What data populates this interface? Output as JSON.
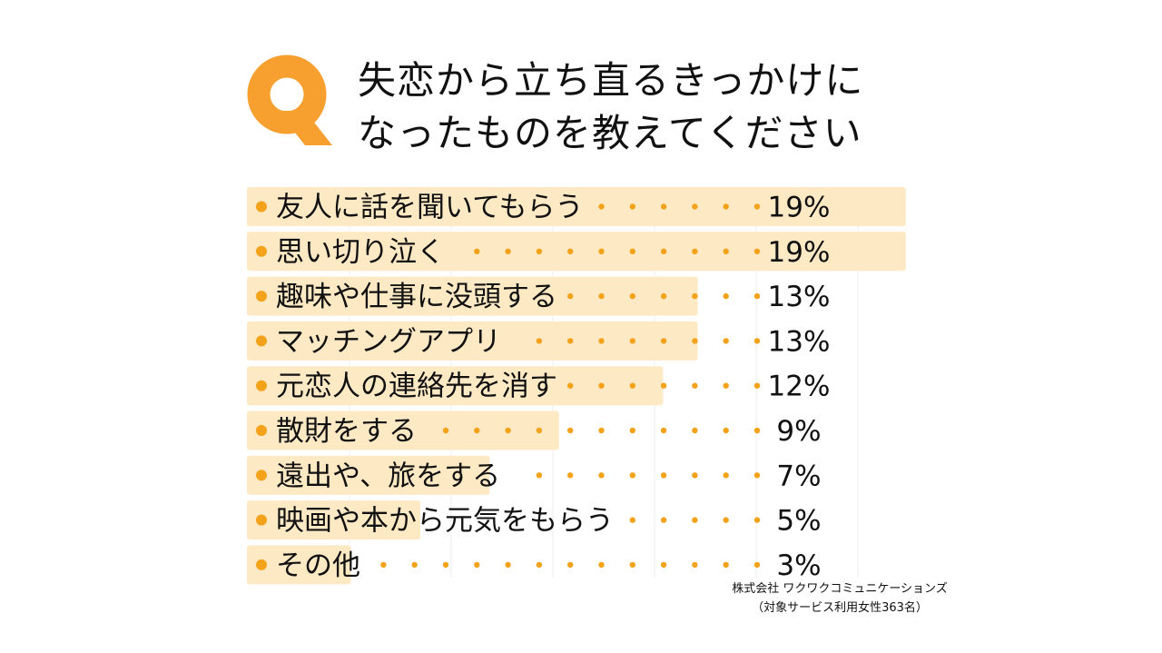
{
  "colors": {
    "accent": "#F7A02F",
    "bar": "#FDE9C4",
    "dot": "#F4A21A",
    "text": "#111111"
  },
  "question": {
    "mark": "Q",
    "line1": "失恋から立ち直るきっかけに",
    "line2": "なったものを教えてください"
  },
  "source": {
    "line1": "株式会社 ワクワクコミュニケーションズ",
    "line2": "（対象サービス利用女性363名）"
  },
  "chart_data": {
    "type": "bar",
    "orientation": "horizontal",
    "categories": [
      "友人に話を聞いてもらう",
      "思い切り泣く",
      "趣味や仕事に没頭する",
      "マッチングアプリ",
      "元恋人の連絡先を消す",
      "散財をする",
      "遠出や、旅をする",
      "映画や本から元気をもらう",
      "その他"
    ],
    "values": [
      19,
      19,
      13,
      13,
      12,
      9,
      7,
      5,
      3
    ],
    "value_labels": [
      "19%",
      "19%",
      "13%",
      "13%",
      "12%",
      "9%",
      "7%",
      "5%",
      "3%"
    ],
    "xlim": [
      0,
      19
    ],
    "grid": true
  }
}
